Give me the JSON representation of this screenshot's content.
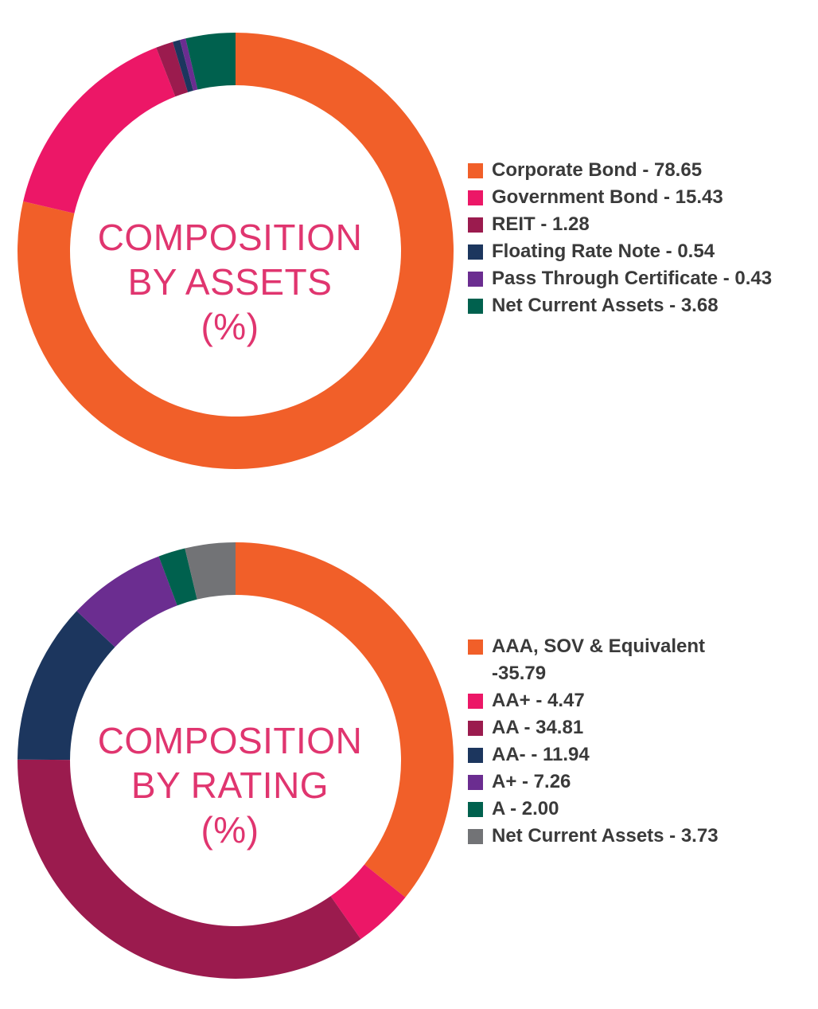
{
  "chart_data": [
    {
      "type": "pie",
      "title": "COMPOSITION BY ASSETS (%)",
      "title_lines": [
        "COMPOSITION",
        "BY ASSETS",
        "(%)"
      ],
      "categories": [
        "Corporate Bond",
        "Government Bond",
        "REIT",
        "Floating Rate Note",
        "Pass Through Certificate",
        "Net Current Assets"
      ],
      "values": [
        78.65,
        15.43,
        1.28,
        0.54,
        0.43,
        3.68
      ],
      "colors": [
        "#F15F29",
        "#EC1767",
        "#9B1B4E",
        "#1C365E",
        "#6B2D90",
        "#00614E"
      ],
      "legend": [
        "Corporate Bond - 78.65",
        "Government Bond - 15.43",
        "REIT - 1.28",
        "Floating Rate Note - 0.54",
        "Pass Through Certificate - 0.43",
        "Net Current Assets - 3.68"
      ],
      "legend_position": "right",
      "style": "donut"
    },
    {
      "type": "pie",
      "title": "COMPOSITION BY RATING (%)",
      "title_lines": [
        "COMPOSITION",
        "BY RATING",
        "(%)"
      ],
      "categories": [
        "AAA, SOV & Equivalent",
        "AA+",
        "AA",
        "AA-",
        "A+",
        "A",
        "Net Current Assets"
      ],
      "values": [
        35.79,
        4.47,
        34.81,
        11.94,
        7.26,
        2.0,
        3.73
      ],
      "colors": [
        "#F15F29",
        "#EC1767",
        "#9B1B4E",
        "#1C365E",
        "#6B2D90",
        "#00614E",
        "#727376"
      ],
      "legend": [
        [
          "AAA, SOV & Equivalent",
          "-35.79"
        ],
        "AA+ - 4.47",
        "AA - 34.81",
        "AA- - 11.94",
        "A+ - 7.26",
        "A - 2.00",
        "Net Current Assets - 3.73"
      ],
      "legend_position": "right",
      "style": "donut"
    }
  ]
}
